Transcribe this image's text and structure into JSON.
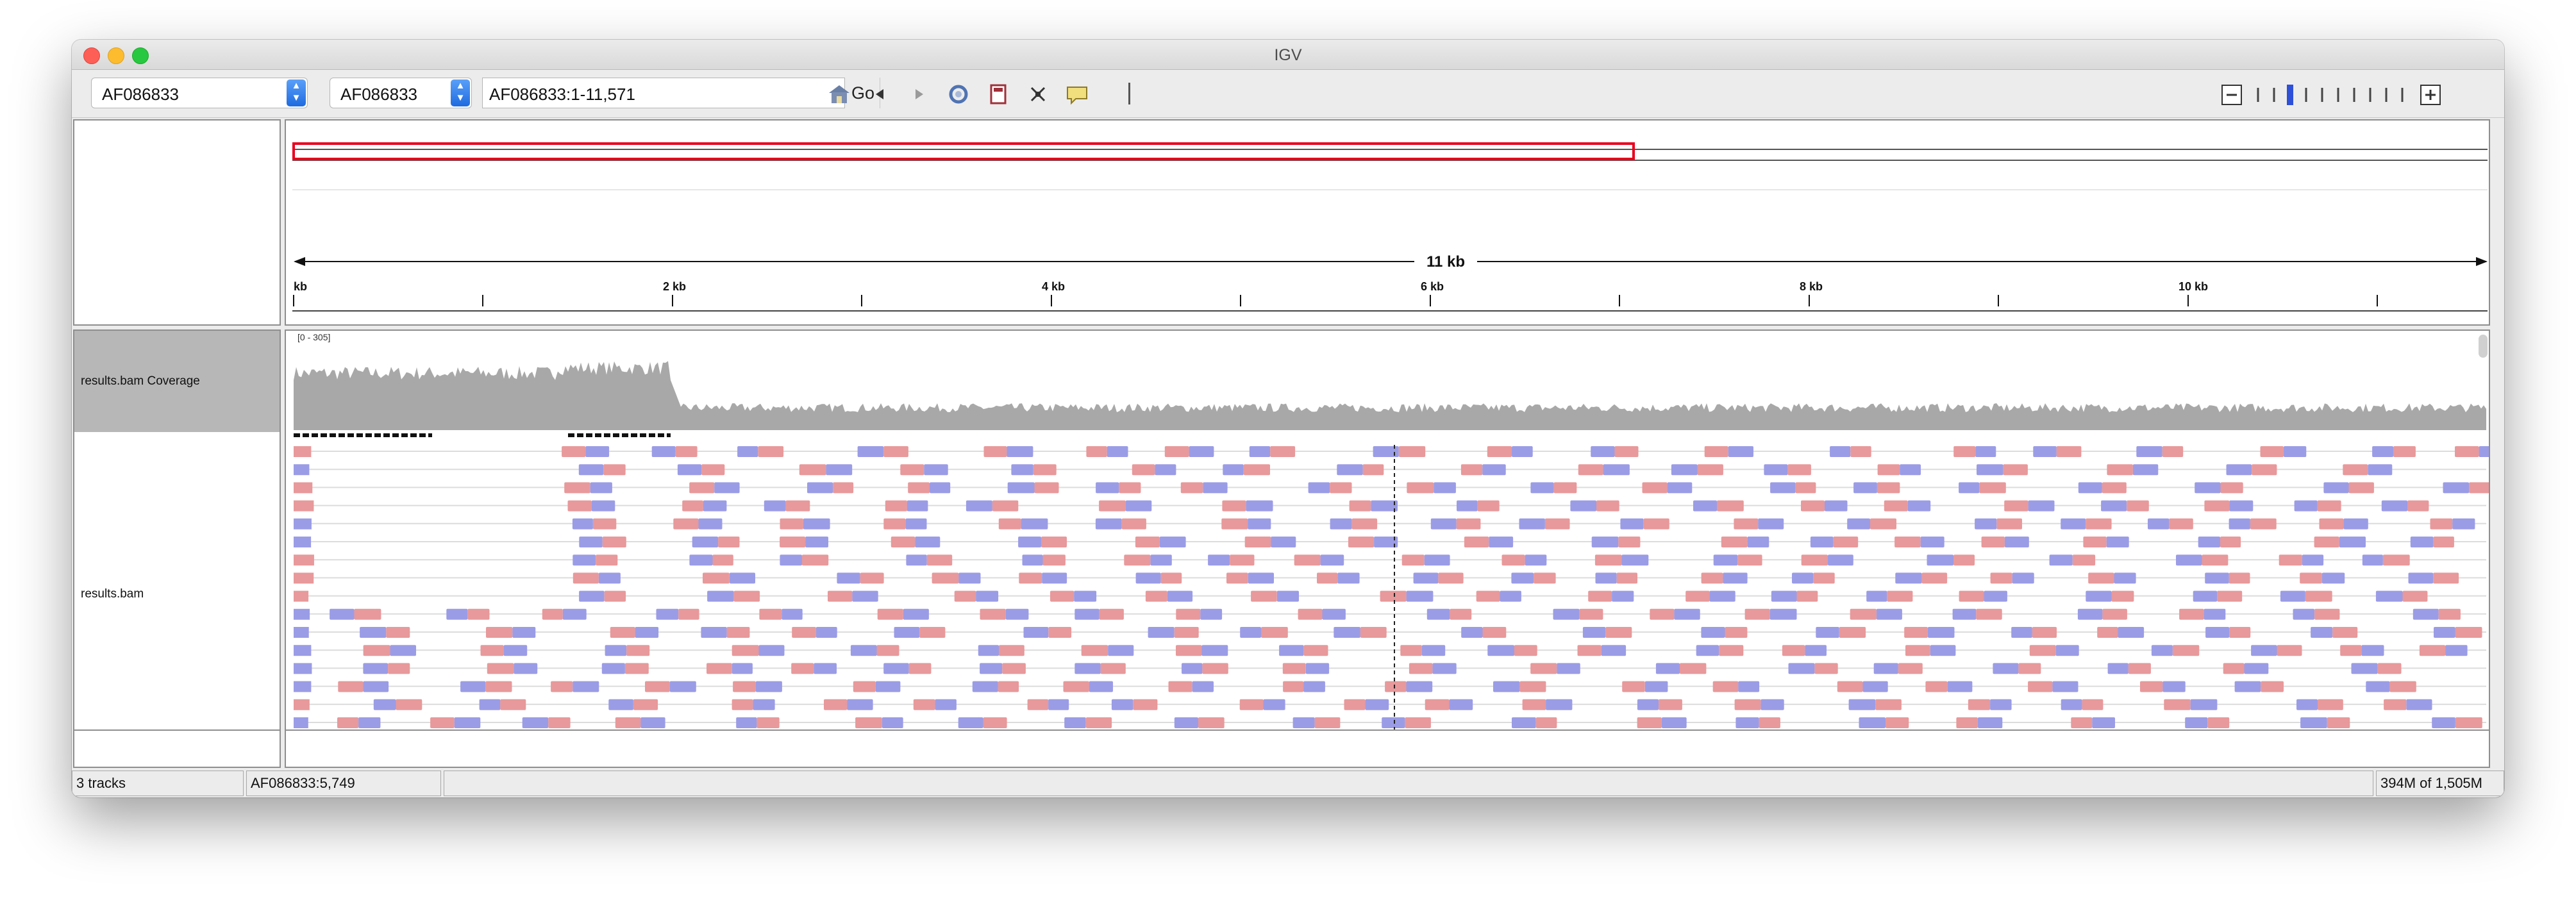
{
  "window": {
    "title": "IGV"
  },
  "toolbar": {
    "genome": "AF086833",
    "chromosome": "AF086833",
    "locus": "AF086833:1-11,571",
    "go_label": "Go"
  },
  "ruler": {
    "span_label": "11 kb",
    "ticks": [
      "kb",
      "2 kb",
      "4 kb",
      "6 kb",
      "8 kb",
      "10 kb"
    ]
  },
  "tracks": {
    "coverage_name": "results.bam Coverage",
    "coverage_range": "[0 - 305]",
    "alignment_name": "results.bam"
  },
  "colors": {
    "read_forward": "#e8999b",
    "read_reverse": "#9b9ce6",
    "coverage": "#a8a8a8",
    "region_box": "#e8001a"
  },
  "status": {
    "tracks": "3 tracks",
    "position": "AF086833:5,749",
    "memory": "394M of 1,505M"
  }
}
